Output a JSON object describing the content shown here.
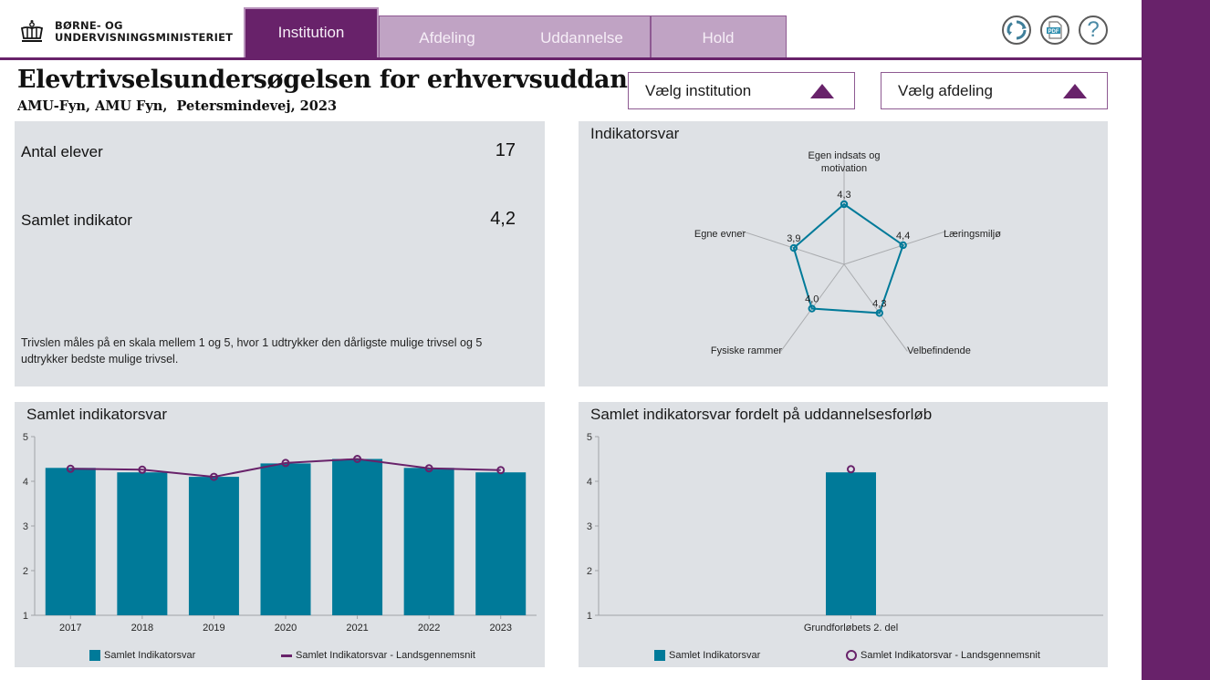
{
  "header": {
    "logo_line1": "BØRNE- OG",
    "logo_line2": "UNDERVISNINGSMINISTERIET",
    "tabs": [
      {
        "label": "Institution",
        "active": true
      },
      {
        "label": "Afdeling",
        "active": false
      },
      {
        "label": "Uddannelse",
        "active": false
      },
      {
        "label": "Hold",
        "active": false
      }
    ],
    "icons": [
      "refresh-icon",
      "pdf-icon",
      "help-icon"
    ],
    "pdf_label": "PDF",
    "help_label": "?"
  },
  "page": {
    "title": "Elevtrivselsundersøgelsen for erhvervsuddan...",
    "subtitle": "AMU-Fyn, AMU Fyn,  Petersmindevej, 2023"
  },
  "filters": {
    "institution": "Vælg institution",
    "department": "Vælg afdeling"
  },
  "kpi": {
    "students_label": "Antal elever",
    "students_value": "17",
    "indicator_label": "Samlet indikator",
    "indicator_value": "4,2",
    "note": "Trivslen måles på en skala mellem 1 og 5, hvor 1 udtrykker den dårligste mulige trivsel og 5 udtrykker bedste mulige trivsel."
  },
  "colors": {
    "brand_purple": "#68226a",
    "bar_teal": "#007a99",
    "panel_gray": "#dee1e5"
  },
  "chart_data": [
    {
      "id": "radar",
      "type": "radar",
      "title": "Indikatorsvar",
      "axes": [
        "Egen indsats og motivation",
        "Læringsmiljø",
        "Velbefindende",
        "Fysiske rammer",
        "Egne evner"
      ],
      "axis_label_lines": [
        [
          "Egen indsats og",
          "motivation"
        ],
        [
          "Læringsmiljø"
        ],
        [
          "Velbefindende"
        ],
        [
          "Fysiske rammer"
        ],
        [
          "Egne evner"
        ]
      ],
      "values": [
        4.3,
        4.4,
        4.3,
        4.0,
        3.9
      ],
      "value_labels": [
        "4,3",
        "4,4",
        "4,3",
        "4,0",
        "3,9"
      ],
      "range": [
        1,
        5
      ]
    },
    {
      "id": "trend",
      "type": "bar",
      "title": "Samlet indikatorsvar",
      "categories": [
        "2017",
        "2018",
        "2019",
        "2020",
        "2021",
        "2022",
        "2023"
      ],
      "series": [
        {
          "name": "Samlet Indikatorsvar",
          "type": "bar",
          "values": [
            4.3,
            4.2,
            4.1,
            4.4,
            4.5,
            4.3,
            4.2
          ]
        },
        {
          "name": "Samlet Indikatorsvar - Landsgennemsnit",
          "type": "line",
          "values": [
            4.28,
            4.26,
            4.1,
            4.41,
            4.5,
            4.29,
            4.25
          ]
        }
      ],
      "yticks": [
        "1",
        "2",
        "3",
        "4",
        "5"
      ],
      "ylim": [
        1,
        5
      ],
      "legend": "bottom"
    },
    {
      "id": "byprogram",
      "type": "bar",
      "title": "Samlet indikatorsvar fordelt på uddannelsesforløb",
      "categories": [
        "Grundforløbets 2. del"
      ],
      "series": [
        {
          "name": "Samlet Indikatorsvar",
          "type": "bar",
          "values": [
            4.2
          ]
        },
        {
          "name": "Samlet Indikatorsvar - Landsgennemsnit",
          "type": "marker",
          "values": [
            4.27
          ]
        }
      ],
      "yticks": [
        "1",
        "2",
        "3",
        "4",
        "5"
      ],
      "ylim": [
        1,
        5
      ],
      "legend": "bottom"
    }
  ]
}
